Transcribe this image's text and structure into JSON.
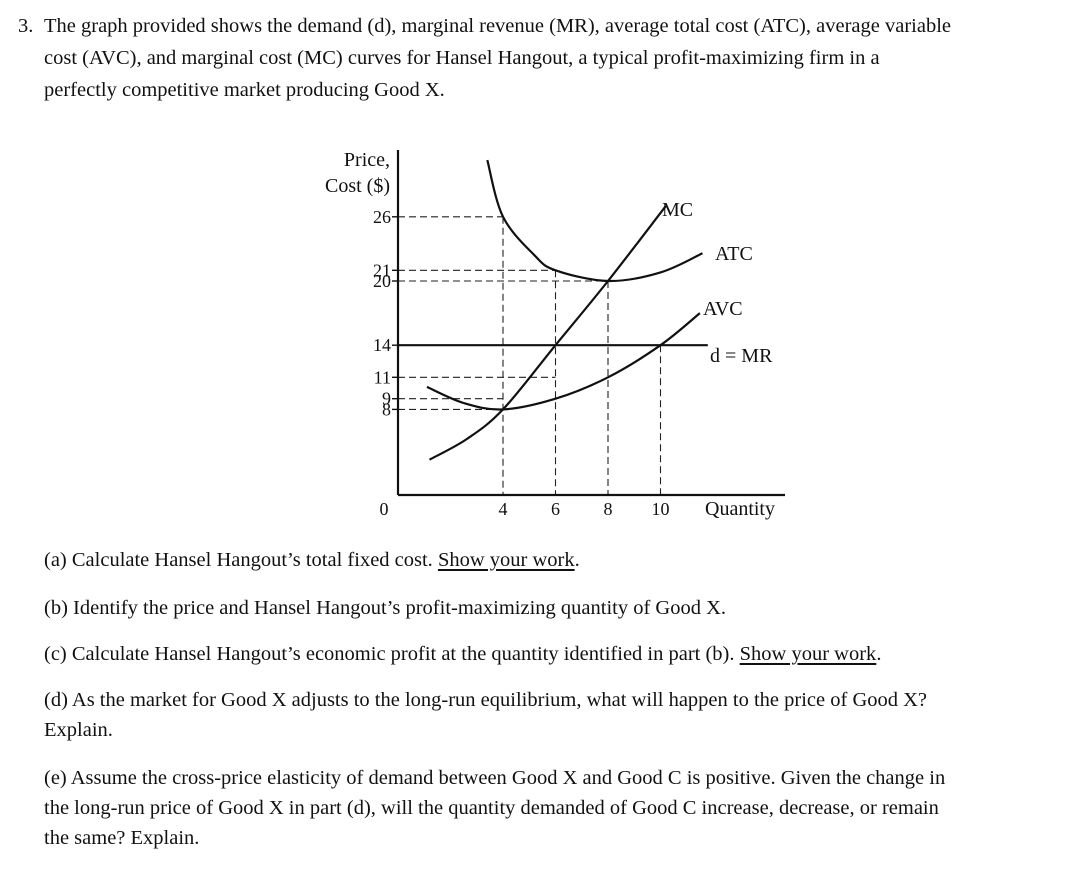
{
  "question": {
    "number": "3.",
    "lines": [
      "The graph provided shows the demand (d), marginal revenue (MR), average total cost (ATC), average variable",
      "cost (AVC), and marginal cost (MC) curves for Hansel Hangout, a typical profit-maximizing firm in a",
      "perfectly competitive market producing Good X."
    ]
  },
  "chart_data": {
    "type": "line",
    "title": "",
    "ylabel_lines": [
      "Price,",
      "Cost ($)"
    ],
    "xlabel": "Quantity",
    "origin_label": "0",
    "xlim": [
      0,
      14.3
    ],
    "ylim": [
      0,
      33
    ],
    "grid": false,
    "x_ticks": [
      4,
      6,
      8,
      10
    ],
    "y_ticks": [
      26,
      21,
      20,
      14,
      11,
      9,
      8
    ],
    "series": [
      {
        "name": "MC",
        "points": [
          [
            1.2,
            3.3
          ],
          [
            2.6,
            5.2
          ],
          [
            4,
            8
          ],
          [
            6,
            14
          ],
          [
            8,
            20
          ],
          [
            10.2,
            27
          ]
        ]
      },
      {
        "name": "ATC",
        "points": [
          [
            3.4,
            31.3
          ],
          [
            4,
            26
          ],
          [
            5.2,
            22.4
          ],
          [
            6,
            21
          ],
          [
            8,
            20
          ],
          [
            10,
            20.8
          ],
          [
            11.6,
            22.6
          ]
        ]
      },
      {
        "name": "AVC",
        "points": [
          [
            1.1,
            10.1
          ],
          [
            2.5,
            8.6
          ],
          [
            4,
            8
          ],
          [
            6,
            9
          ],
          [
            8,
            11
          ],
          [
            10,
            14
          ],
          [
            11.5,
            17
          ]
        ]
      },
      {
        "name": "d = MR",
        "points": [
          [
            0,
            14
          ],
          [
            11.8,
            14
          ]
        ]
      }
    ],
    "reference_lines": [
      {
        "x": 4,
        "y": [
          26,
          9,
          8
        ]
      },
      {
        "x": 6,
        "y": [
          21,
          14,
          11
        ]
      },
      {
        "x": 8,
        "y": [
          20
        ]
      },
      {
        "x": 10,
        "y": [
          14
        ]
      }
    ]
  },
  "parts": {
    "a_text": "(a) Calculate Hansel Hangout’s total fixed cost. ",
    "a_underlined": "Show your work",
    "a_end": ".",
    "b_text": "(b) Identify the price and Hansel Hangout’s profit-maximizing quantity of Good X.",
    "c_text": "(c) Calculate Hansel Hangout’s economic profit at the quantity identified in part (b). ",
    "c_underlined": "Show your work",
    "c_end": ".",
    "d_line1": "(d) As the market for Good X adjusts to the long-run equilibrium, what will happen to the price of Good X?",
    "d_line2": "Explain.",
    "e_line1": "(e) Assume the cross-price elasticity of demand between Good X and Good C is positive. Given the change in",
    "e_line2": "the long-run price of Good X in part (d), will the quantity demanded of Good C increase, decrease, or remain",
    "e_line3": "the same? Explain."
  }
}
